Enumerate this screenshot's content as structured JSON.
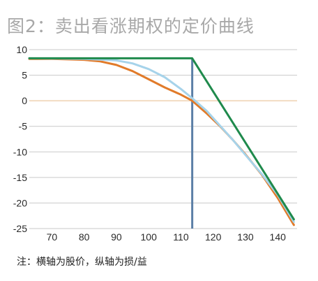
{
  "chart_data": {
    "type": "line",
    "title": "图2：卖出看涨期权的定价曲线",
    "xlabel": "",
    "ylabel": "",
    "note": "注：横轴为股价，纵轴为损/益",
    "xlim": [
      63,
      146
    ],
    "ylim": [
      -25,
      10
    ],
    "xticks": [
      70,
      80,
      90,
      100,
      110,
      120,
      130,
      140
    ],
    "yticks": [
      10,
      5,
      0,
      -5,
      -10,
      -15,
      -20,
      -25
    ],
    "grid": true,
    "legend": "none",
    "strike": 113.5,
    "colors": {
      "expiry": "#1f8a4c",
      "near": "#a6d3ea",
      "far": "#e17b2a",
      "strike_line": "#5b7fa6",
      "zero_line": "#f3dcc2",
      "grid": "#c9c9c9"
    },
    "series": [
      {
        "color_key": "expiry",
        "x": [
          63,
          113.5,
          145
        ],
        "y": [
          8.3,
          8.3,
          -23.2
        ]
      },
      {
        "color_key": "near",
        "x": [
          63,
          80,
          90,
          95,
          100,
          105,
          110,
          113.5,
          118,
          122,
          126,
          130,
          135,
          140,
          145
        ],
        "y": [
          8.3,
          8.2,
          7.9,
          7.3,
          6.2,
          4.6,
          2.3,
          0.5,
          -2.0,
          -4.8,
          -7.6,
          -10.6,
          -14.3,
          -18.4,
          -23.7
        ]
      },
      {
        "color_key": "far",
        "x": [
          63,
          70,
          80,
          85,
          90,
          95,
          100,
          105,
          110,
          113.5,
          118,
          122,
          126,
          130,
          135,
          140,
          145
        ],
        "y": [
          8.2,
          8.2,
          8.0,
          7.7,
          7.0,
          5.8,
          4.2,
          2.6,
          1.2,
          0.0,
          -2.5,
          -4.9,
          -7.6,
          -10.5,
          -14.4,
          -19.0,
          -24.3
        ]
      }
    ]
  }
}
